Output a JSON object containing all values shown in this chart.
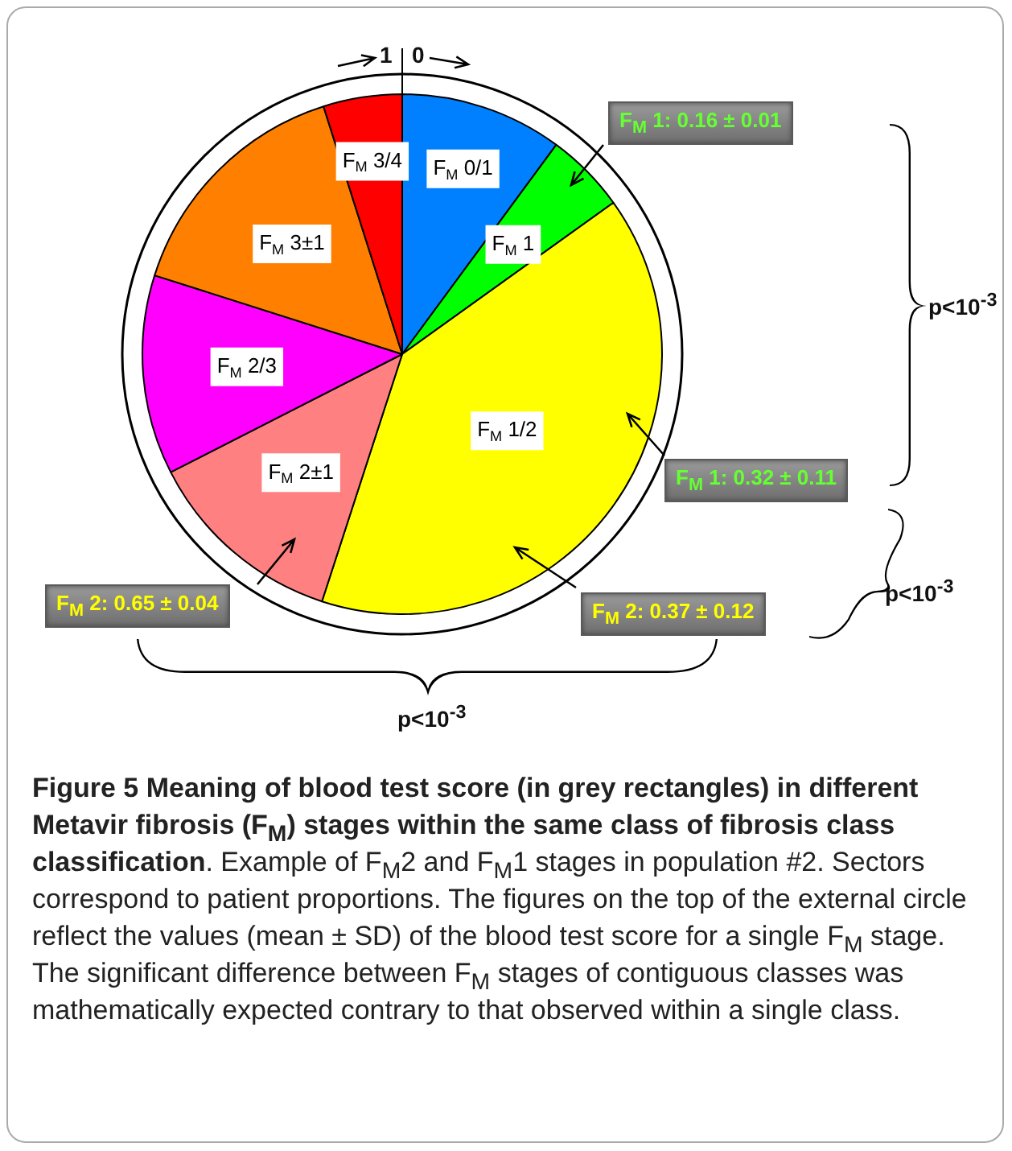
{
  "chart_data": {
    "type": "pie",
    "title": "Figure 5 Meaning of blood test score (in grey rectangles) in different Metavir fibrosis (F$_{M}$) stages within the same class of fibrosis class classification",
    "categories": [
      "F$_{M}$ 0/1",
      "F$_{M}$ 1",
      "F$_{M}$ 1/2",
      "F$_{M}$ 2±1",
      "F$_{M}$ 2/3",
      "F$_{M}$ 3±1",
      "F$_{M}$ 3/4"
    ],
    "values": [
      10.1,
      5.0,
      39.9,
      12.5,
      12.4,
      15.2,
      4.9
    ],
    "colors": [
      "#0080ff",
      "#00ff00",
      "#ffff00",
      "#ff8080",
      "#ff00ff",
      "#ff8000",
      "#ff0000"
    ],
    "legend": false,
    "annotations": [
      "1",
      "0",
      "F$_{M}$ 1: 0.16 ± 0.01",
      "F$_{M}$ 1: 0.32 ± 0.11",
      "F$_{M}$ 2: 0.65 ± 0.04",
      "F$_{M}$ 2: 0.37 ± 0.12",
      "p<10$^{-3}$",
      "p<10$^{-3}$",
      "p<10$^{-3}$",
      ". Example of F$_{M}$2 and F$_{M}$1 stages in population #2. Sectors correspond to patient proportions. The figures on the top of the external circle reflect the values (mean ± SD) of the blood test score for a single F$_{M}$ stage. The significant difference between F$_{M}$ stages of contiguous classes was mathematically expected contrary to that observed within a single class."
    ]
  }
}
